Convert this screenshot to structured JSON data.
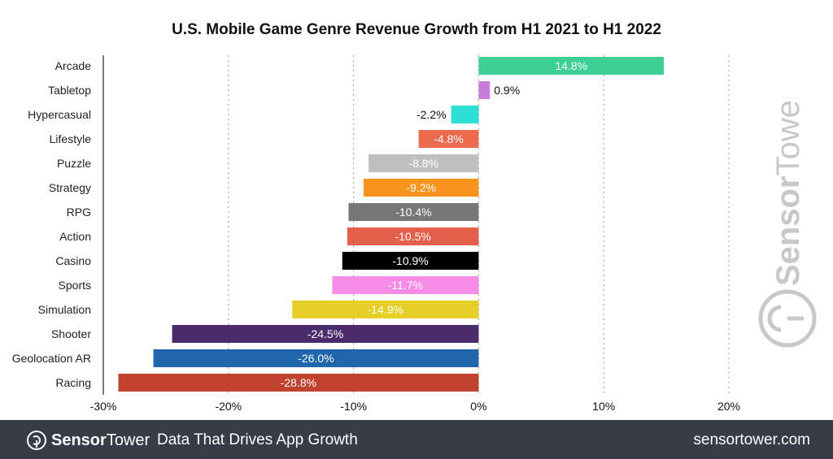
{
  "chart_data": {
    "type": "bar",
    "orientation": "horizontal",
    "title": "U.S. Mobile Game Genre Revenue Growth from H1 2021 to H1 2022",
    "categories": [
      "Arcade",
      "Tabletop",
      "Hypercasual",
      "Lifestyle",
      "Puzzle",
      "Strategy",
      "RPG",
      "Action",
      "Casino",
      "Sports",
      "Simulation",
      "Shooter",
      "Geolocation AR",
      "Racing"
    ],
    "values": [
      14.8,
      0.9,
      -2.2,
      -4.8,
      -8.8,
      -9.2,
      -10.4,
      -10.5,
      -10.9,
      -11.7,
      -14.9,
      -24.5,
      -26.0,
      -28.8
    ],
    "data_labels": [
      "14.8%",
      "0.9%",
      "-2.2%",
      "-4.8%",
      "-8.8%",
      "-9.2%",
      "-10.4%",
      "-10.5%",
      "-10.9%",
      "-11.7%",
      "-14.9%",
      "-24.5%",
      "-26.0%",
      "-28.8%"
    ],
    "colors": [
      "#3ecf95",
      "#c77ddb",
      "#2ee0d3",
      "#ee6a4f",
      "#c0c0c0",
      "#f7941d",
      "#777777",
      "#e5604a",
      "#000000",
      "#f78ce8",
      "#e6cf27",
      "#4b2c6b",
      "#1f66ad",
      "#c0422f"
    ],
    "xlim": [
      -30,
      20
    ],
    "xticks": [
      -30,
      -20,
      -10,
      0,
      10,
      20
    ],
    "xtick_labels": [
      "-30%",
      "-20%",
      "-10%",
      "0%",
      "10%",
      "20%"
    ],
    "grid": "vertical dotted",
    "xlabel": "",
    "ylabel": ""
  },
  "watermark": "SensorTower",
  "footer": {
    "brand_bold": "Sensor",
    "brand_light": "Tower",
    "tagline": "Data That Drives App Growth",
    "url": "sensortower.com",
    "background": "#383c47"
  }
}
